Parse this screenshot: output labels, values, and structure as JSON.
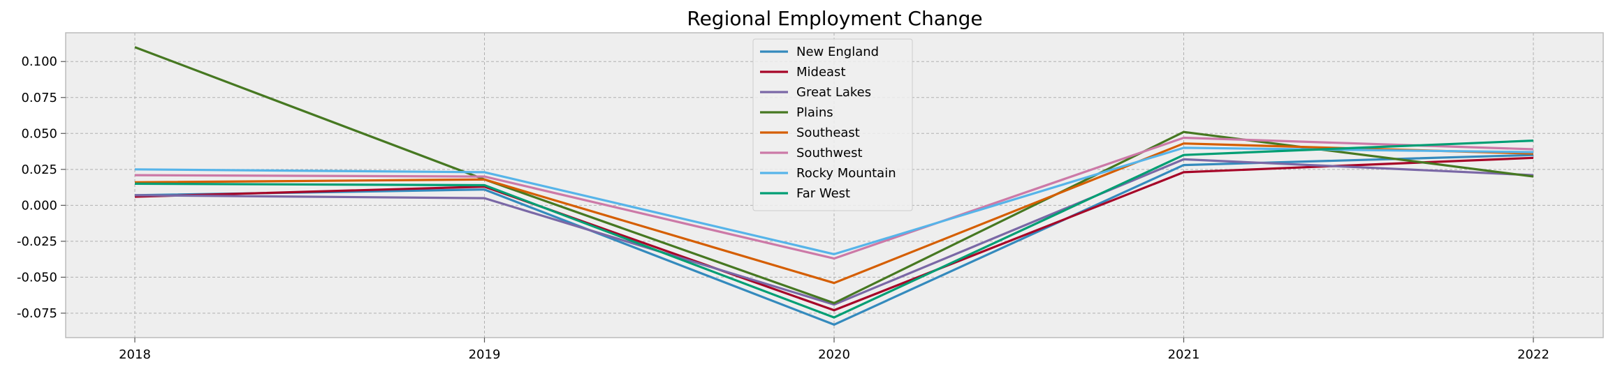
{
  "chart_data": {
    "type": "line",
    "title": "Regional Employment Change",
    "xlabel": "",
    "ylabel": "",
    "x": [
      "2018",
      "2019",
      "2020",
      "2021",
      "2022"
    ],
    "ylim": [
      -0.092,
      0.12
    ],
    "yticks": [
      "0.100",
      "0.075",
      "0.050",
      "0.025",
      "0.000",
      "-0.025",
      "-0.050",
      "-0.075"
    ],
    "ytick_values": [
      0.1,
      0.075,
      0.05,
      0.025,
      0.0,
      -0.025,
      -0.05,
      -0.075
    ],
    "grid": true,
    "legend_position": "top-center",
    "colors": {
      "plot_background": "#eeeeee",
      "grid": "#b0b0b0",
      "axes_edge": "#bcbcbc",
      "text": "#000000"
    },
    "series": [
      {
        "name": "New England",
        "color": "#348abd",
        "values": [
          0.007,
          0.011,
          -0.083,
          0.028,
          0.035
        ]
      },
      {
        "name": "Mideast",
        "color": "#a60628",
        "values": [
          0.006,
          0.013,
          -0.073,
          0.023,
          0.033
        ]
      },
      {
        "name": "Great Lakes",
        "color": "#7a68a6",
        "values": [
          0.007,
          0.005,
          -0.069,
          0.032,
          0.021
        ]
      },
      {
        "name": "Plains",
        "color": "#467821",
        "values": [
          0.11,
          0.018,
          -0.068,
          0.051,
          0.02
        ]
      },
      {
        "name": "Southeast",
        "color": "#d55e00",
        "values": [
          0.016,
          0.018,
          -0.054,
          0.043,
          0.036
        ]
      },
      {
        "name": "Southwest",
        "color": "#cc79a7",
        "values": [
          0.021,
          0.02,
          -0.037,
          0.047,
          0.039
        ]
      },
      {
        "name": "Rocky Mountain",
        "color": "#56b4e9",
        "values": [
          0.025,
          0.023,
          -0.034,
          0.04,
          0.037
        ]
      },
      {
        "name": "Far West",
        "color": "#009e73",
        "values": [
          0.015,
          0.014,
          -0.078,
          0.035,
          0.045
        ]
      }
    ]
  }
}
